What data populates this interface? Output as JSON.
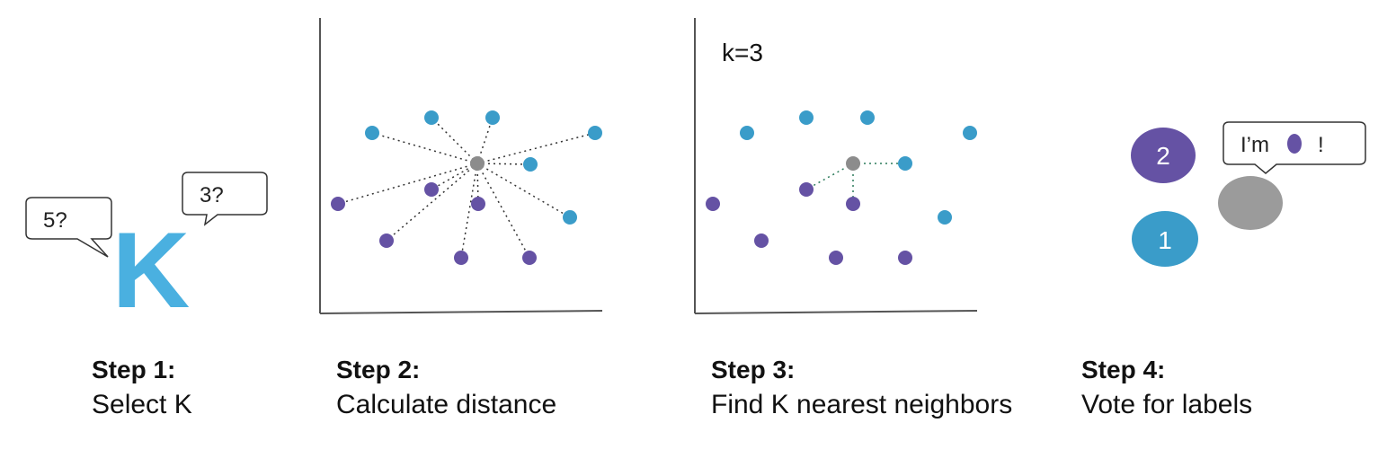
{
  "colors": {
    "blue": "#3a9cc9",
    "purple": "#6552a4",
    "gray": "#8c8c8c",
    "k_letter": "#4ab0e0",
    "axis": "#555555",
    "dotted_line": "#333333"
  },
  "step1": {
    "title": "Step 1:",
    "desc": "Select K",
    "k_letter": "K",
    "bubble_left": "5?",
    "bubble_right": "3?"
  },
  "step2": {
    "title": "Step 2:",
    "desc": "Calculate distance"
  },
  "step3": {
    "title": "Step 3:",
    "desc": "Find K nearest neighbors",
    "k_label": "k=3"
  },
  "step4": {
    "title": "Step 4:",
    "desc": "Vote for labels",
    "purple_votes": "2",
    "blue_votes": "1",
    "speech_prefix": "I’m",
    "speech_suffix": "!"
  }
}
